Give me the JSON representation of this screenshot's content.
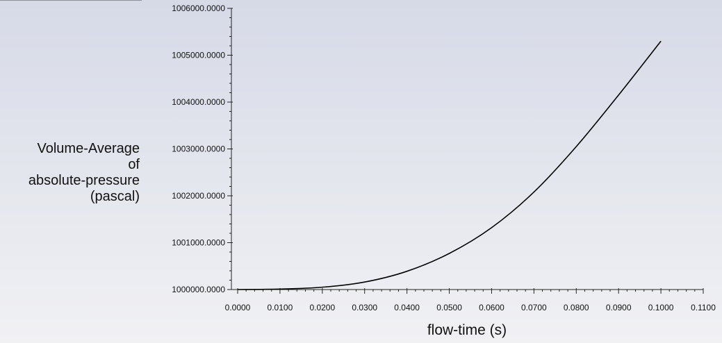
{
  "chart_data": {
    "type": "line",
    "xlabel": "flow-time (s)",
    "ylabel_lines": [
      "Volume-Average",
      "of",
      "absolute-pressure",
      "(pascal)"
    ],
    "xlim": [
      0,
      0.11
    ],
    "ylim": [
      1000000,
      1006000
    ],
    "x_ticks": [
      "0.0000",
      "0.0100",
      "0.0200",
      "0.0300",
      "0.0400",
      "0.0500",
      "0.0600",
      "0.0700",
      "0.0800",
      "0.0900",
      "0.1000",
      "0.1100"
    ],
    "y_ticks": [
      "1000000.0000",
      "1001000.0000",
      "1002000.0000",
      "1003000.0000",
      "1004000.0000",
      "1005000.0000",
      "1006000.0000"
    ],
    "grid": false,
    "series": [
      {
        "color": "#000000",
        "x": [
          0.0,
          0.01,
          0.02,
          0.03,
          0.04,
          0.05,
          0.06,
          0.07,
          0.08,
          0.09,
          0.1
        ],
        "y": [
          1000000,
          1000010,
          1000050,
          1000160,
          1000390,
          1000770,
          1001320,
          1002080,
          1003050,
          1004150,
          1005300
        ]
      }
    ]
  }
}
